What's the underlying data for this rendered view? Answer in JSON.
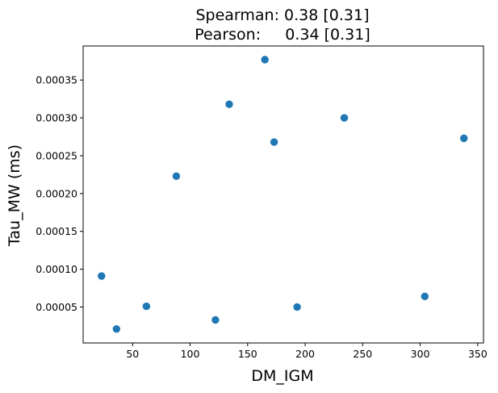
{
  "chart_data": {
    "type": "scatter",
    "title_lines": [
      "Spearman: 0.38 [0.31]",
      "Pearson:     0.34 [0.31]"
    ],
    "xlabel": "DM_IGM",
    "ylabel": "Tau_MW (ms)",
    "xlim": [
      7,
      355
    ],
    "ylim": [
      2.5e-06,
      0.000395
    ],
    "xticks": [
      50,
      100,
      150,
      200,
      250,
      300,
      350
    ],
    "xtick_labels": [
      "50",
      "100",
      "150",
      "200",
      "250",
      "300",
      "350"
    ],
    "yticks": [
      5e-05,
      0.0001,
      0.00015,
      0.0002,
      0.00025,
      0.0003,
      0.00035
    ],
    "ytick_labels": [
      "0.00005",
      "0.00010",
      "0.00015",
      "0.00020",
      "0.00025",
      "0.00030",
      "0.00035"
    ],
    "grid": false,
    "marker_color": "#1f77b4",
    "points": [
      {
        "x": 23,
        "y": 9.1e-05
      },
      {
        "x": 36,
        "y": 2.1e-05
      },
      {
        "x": 62,
        "y": 5.1e-05
      },
      {
        "x": 88,
        "y": 0.000223
      },
      {
        "x": 122,
        "y": 3.3e-05
      },
      {
        "x": 134,
        "y": 0.000318
      },
      {
        "x": 165,
        "y": 0.000377
      },
      {
        "x": 173,
        "y": 0.000268
      },
      {
        "x": 193,
        "y": 5e-05
      },
      {
        "x": 234,
        "y": 0.0003
      },
      {
        "x": 304,
        "y": 6.4e-05
      },
      {
        "x": 338,
        "y": 0.000273
      }
    ]
  }
}
